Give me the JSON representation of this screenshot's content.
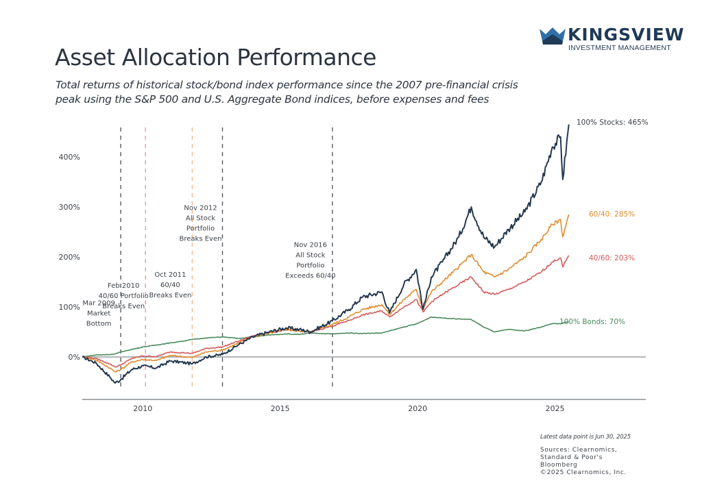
{
  "brand": {
    "name": "KINGSVIEW",
    "tagline": "INVESTMENT MANAGEMENT",
    "icon": "crown-icon",
    "colors": {
      "primary": "#1f3a57",
      "light": "#2f6fa8"
    }
  },
  "header": {
    "title": "Asset Allocation Performance",
    "subtitle_line1": "Total returns of historical stock/bond index performance since the 2007 pre-financial crisis",
    "subtitle_line2": "peak using the S&P 500 and U.S. Aggregate Bond indices, before expenses and fees"
  },
  "footer": {
    "latest": "Latest data point is Jun 30, 2025",
    "sources": [
      "Sources: Clearnomics,",
      "Standard & Poor's",
      "Bloomberg",
      "©2025 Clearnomics, Inc."
    ]
  },
  "chart_data": {
    "type": "line",
    "title": "Asset Allocation Performance",
    "xlabel": "",
    "ylabel": "",
    "xlim": [
      2007.8,
      2028.3
    ],
    "ylim": [
      -80,
      480
    ],
    "grid": false,
    "y_ticks": [
      0,
      100,
      200,
      300,
      400
    ],
    "y_tick_labels": [
      "0%",
      "100%",
      "200%",
      "300%",
      "400%"
    ],
    "x_ticks": [
      2010,
      2015,
      2020,
      2025
    ],
    "x_tick_labels": [
      "2010",
      "2015",
      "2020",
      "2025"
    ],
    "x": [
      2007.8,
      2008.3,
      2008.8,
      2009.0,
      2009.2,
      2009.6,
      2010.0,
      2010.5,
      2011.0,
      2011.6,
      2011.8,
      2012.3,
      2012.9,
      2013.5,
      2014.0,
      2014.6,
      2015.2,
      2015.7,
      2016.1,
      2016.9,
      2017.5,
      2018.0,
      2018.7,
      2018.98,
      2019.5,
      2019.95,
      2020.2,
      2020.5,
      2020.9,
      2021.5,
      2021.95,
      2022.4,
      2022.8,
      2023.3,
      2023.9,
      2024.5,
      2024.9,
      2025.2,
      2025.28,
      2025.5
    ],
    "series": [
      {
        "name": "100% Stocks",
        "end_label": "100% Stocks: 465%",
        "color": "#23384f",
        "values": [
          0,
          -12,
          -40,
          -52,
          -45,
          -25,
          -18,
          -22,
          -8,
          -12,
          -14,
          0,
          5,
          25,
          40,
          50,
          58,
          55,
          50,
          72,
          95,
          120,
          130,
          88,
          145,
          175,
          95,
          160,
          190,
          240,
          300,
          240,
          220,
          255,
          290,
          350,
          420,
          440,
          355,
          465
        ]
      },
      {
        "name": "60/40",
        "end_label": "60/40: 285%",
        "color": "#e08b2e",
        "values": [
          0,
          -6,
          -22,
          -30,
          -25,
          -10,
          -5,
          -7,
          3,
          0,
          -1,
          10,
          14,
          28,
          40,
          48,
          55,
          52,
          50,
          65,
          80,
          95,
          105,
          85,
          115,
          135,
          98,
          130,
          150,
          180,
          205,
          170,
          160,
          175,
          200,
          235,
          265,
          275,
          240,
          285
        ]
      },
      {
        "name": "40/60",
        "end_label": "40/60: 203%",
        "color": "#d45a5a",
        "values": [
          0,
          -3,
          -14,
          -20,
          -16,
          -3,
          2,
          1,
          10,
          8,
          7,
          17,
          20,
          32,
          42,
          48,
          54,
          52,
          50,
          62,
          73,
          84,
          92,
          80,
          100,
          115,
          90,
          110,
          125,
          145,
          160,
          130,
          125,
          135,
          150,
          170,
          190,
          198,
          180,
          203
        ]
      },
      {
        "name": "100% Bonds",
        "end_label": "100% Bonds: 70%",
        "color": "#4a8a5c",
        "values": [
          0,
          4,
          5,
          6,
          10,
          15,
          20,
          24,
          28,
          33,
          35,
          38,
          40,
          37,
          40,
          44,
          46,
          45,
          48,
          46,
          48,
          47,
          48,
          52,
          60,
          66,
          72,
          80,
          78,
          76,
          75,
          60,
          50,
          55,
          52,
          60,
          67,
          66,
          68,
          70
        ]
      }
    ],
    "annotations": [
      {
        "x": 2009.2,
        "lines": [
          "Mar 2009",
          "Market",
          "Bottom"
        ],
        "line_color": "#555b63",
        "label_y": 62
      },
      {
        "x": 2010.1,
        "lines": [
          "Feb 2010",
          "40/60 Portfolio",
          "Breaks Even"
        ],
        "line_color": "#e39a9a",
        "label_y": 97
      },
      {
        "x": 2011.8,
        "lines": [
          "Oct 2011",
          "60/40",
          "Breaks Even"
        ],
        "line_color": "#f0b98a",
        "label_y": 119
      },
      {
        "x": 2012.9,
        "lines": [
          "Nov 2012",
          "All Stock",
          "Portfolio",
          "Breaks Even"
        ],
        "line_color": "#555b63",
        "label_y": 232
      },
      {
        "x": 2016.9,
        "lines": [
          "Nov 2016",
          "All Stock",
          "Portfolio",
          "Exceeds 60/40"
        ],
        "line_color": "#555b63",
        "label_y": 158
      }
    ]
  }
}
